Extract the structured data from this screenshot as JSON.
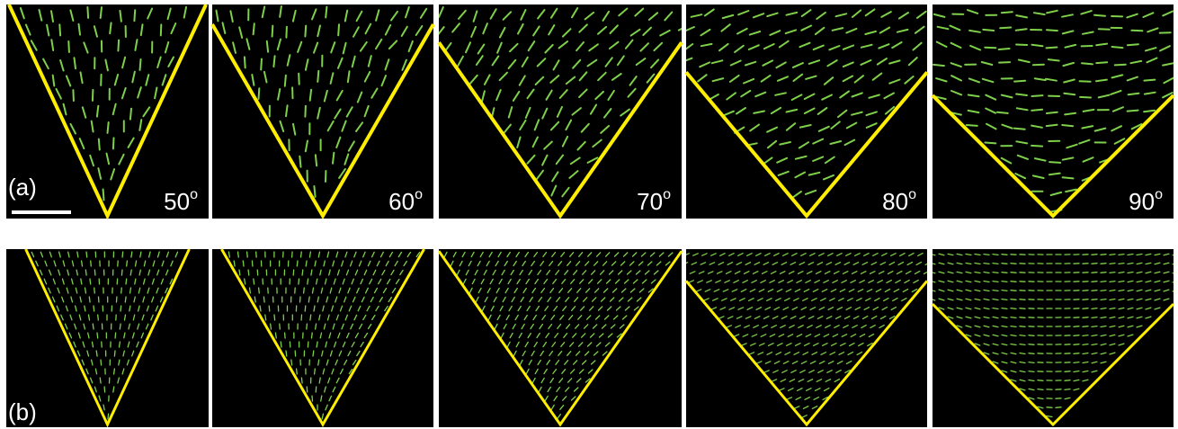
{
  "figure": {
    "background_color": "#000000",
    "wedge_color": "#ffee00",
    "director_color": "#7ecf4a",
    "rows": [
      {
        "label": "(a)",
        "kind": "experiment",
        "has_scale_bar": true,
        "panels": [
          {
            "angle": 50,
            "angle_label": "50",
            "degree_symbol": "o"
          },
          {
            "angle": 60,
            "angle_label": "60",
            "degree_symbol": "o"
          },
          {
            "angle": 70,
            "angle_label": "70",
            "degree_symbol": "o"
          },
          {
            "angle": 80,
            "angle_label": "80",
            "degree_symbol": "o"
          },
          {
            "angle": 90,
            "angle_label": "90",
            "degree_symbol": "o"
          }
        ]
      },
      {
        "label": "(b)",
        "kind": "simulation",
        "has_scale_bar": false,
        "panels": [
          {
            "angle": 50
          },
          {
            "angle": 60
          },
          {
            "angle": 70
          },
          {
            "angle": 80
          },
          {
            "angle": 90
          }
        ]
      }
    ]
  }
}
